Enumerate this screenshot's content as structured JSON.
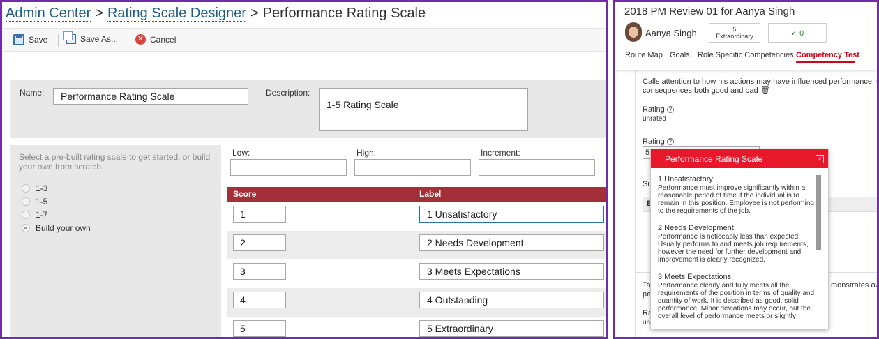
{
  "admin": {
    "breadcrumb": {
      "item1": "Admin Center",
      "sep1": ">",
      "item2": "Rating Scale Designer",
      "sep2": ">",
      "current": "Performance Rating Scale"
    },
    "toolbar": {
      "save": "Save",
      "save_as": "Save As...",
      "cancel": "Cancel"
    },
    "form": {
      "name_label": "Name:",
      "name_value": "Performance Rating Scale",
      "description_label": "Description:",
      "description_value": "1-5 Rating Scale"
    },
    "builder": {
      "hint": "Select a pre-built rating scale to get started, or build your own from scratch.",
      "options": [
        "1-3",
        "1-5",
        "1-7",
        "Build your own"
      ],
      "selected": "Build your own"
    },
    "range": {
      "low_label": "Low:",
      "high_label": "High:",
      "increment_label": "Increment:"
    },
    "grid": {
      "score_header": "Score",
      "label_header": "Label",
      "rows": [
        {
          "score": "1",
          "label": "1 Unsatisfactory"
        },
        {
          "score": "2",
          "label": "2 Needs Development"
        },
        {
          "score": "3",
          "label": "3 Meets Expectations"
        },
        {
          "score": "4",
          "label": "4 Outstanding"
        },
        {
          "score": "5",
          "label": "5 Extraordinary"
        }
      ]
    }
  },
  "review": {
    "title": "2018 PM Review 01 for Aanya Singh",
    "employee": "Aanya Singh",
    "rating_value": "5",
    "rating_text": "Extraordinary",
    "check_text": "✓ 0",
    "tabs": [
      "Route Map",
      "Goals",
      "Role Specific Competencies",
      "Competency Test"
    ],
    "active_tab": "Competency Test",
    "body": {
      "description": "Calls attention to how his actions may have influenced performance; o",
      "description2": "consequences both good and bad",
      "rating_label_1": "Rating",
      "rating_value_1": "unrated",
      "rating_label_2": "Rating",
      "rating_field_partial": "5",
      "su_partial": "Su",
      "e_partial": "E",
      "ta_partial": "Ta",
      "pe_partial": "pe",
      "monstrates": "monstrates own",
      "ra_partial": "Ra",
      "un_partial": "un"
    },
    "popup": {
      "title": "Performance Rating Scale",
      "close": "✕",
      "items": [
        {
          "title": "1 Unsatisfactory:",
          "text": "Performance must improve significantly within a reasonable period of time if the individual is to remain in this position. Employee is not performing to the requirements of the job."
        },
        {
          "title": "2 Needs Development:",
          "text": "Performance is noticeably less than expected. Usually performs to and meets job requirements, however the need for further development and improvement is clearly recognized."
        },
        {
          "title": "3 Meets Expectations:",
          "text": "Performance clearly and fully meets all the requirements of the position in terms of quality and quantity of work. It is described as good, solid performance. Minor deviations may occur, but the overall level of performance meets or slightly"
        }
      ]
    }
  }
}
